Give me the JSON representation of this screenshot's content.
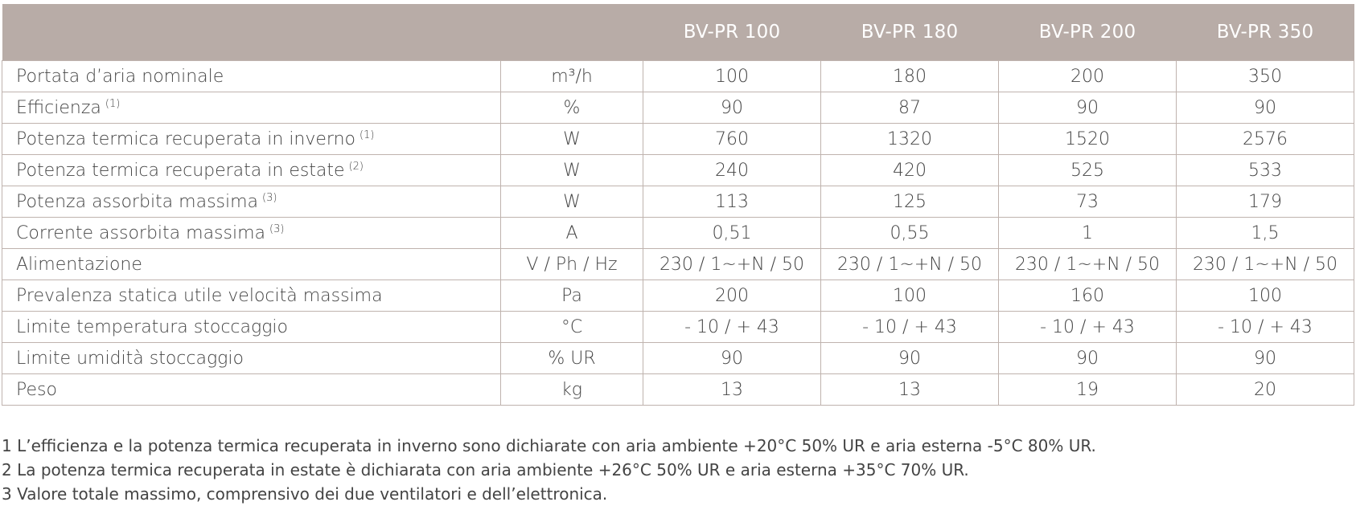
{
  "table": {
    "header": {
      "label": "",
      "unit": "",
      "models": [
        "BV-PR 100",
        "BV-PR 180",
        "BV-PR 200",
        "BV-PR 350"
      ]
    },
    "rows": [
      {
        "label": "Portata d’aria nominale",
        "note": "",
        "unit": "m³/h",
        "values": [
          "100",
          "180",
          "200",
          "350"
        ]
      },
      {
        "label": "Efficienza",
        "note": "(1)",
        "unit": "%",
        "values": [
          "90",
          "87",
          "90",
          "90"
        ]
      },
      {
        "label": "Potenza termica recuperata in inverno",
        "note": "(1)",
        "unit": "W",
        "values": [
          "760",
          "1320",
          "1520",
          "2576"
        ]
      },
      {
        "label": "Potenza termica recuperata in estate",
        "note": "(2)",
        "unit": "W",
        "values": [
          "240",
          "420",
          "525",
          "533"
        ]
      },
      {
        "label": "Potenza assorbita massima",
        "note": "(3)",
        "unit": "W",
        "values": [
          "113",
          "125",
          "73",
          "179"
        ]
      },
      {
        "label": "Corrente assorbita massima",
        "note": "(3)",
        "unit": "A",
        "values": [
          "0,51",
          "0,55",
          "1",
          "1,5"
        ]
      },
      {
        "label": "Alimentazione",
        "note": "",
        "unit": "V / Ph / Hz",
        "values": [
          "230 / 1~+N / 50",
          "230 / 1~+N / 50",
          "230 / 1~+N / 50",
          "230 / 1~+N / 50"
        ]
      },
      {
        "label": "Prevalenza statica utile velocità massima",
        "note": "",
        "unit": "Pa",
        "values": [
          "200",
          "100",
          "160",
          "100"
        ]
      },
      {
        "label": "Limite temperatura stoccaggio",
        "note": "",
        "unit": "°C",
        "values": [
          "- 10 / + 43",
          "- 10 / + 43",
          "- 10 / + 43",
          "- 10 / + 43"
        ]
      },
      {
        "label": "Limite umidità stoccaggio",
        "note": "",
        "unit": "% UR",
        "values": [
          "90",
          "90",
          "90",
          "90"
        ]
      },
      {
        "label": "Peso",
        "note": "",
        "unit": "kg",
        "values": [
          "13",
          "13",
          "19",
          "20"
        ]
      }
    ]
  },
  "notes": [
    "1 L’efficienza e la potenza termica recuperata in inverno sono dichiarate con aria ambiente +20°C 50% UR e aria esterna -5°C 80% UR.",
    "2 La potenza termica recuperata in estate è dichiarata con aria ambiente +26°C 50% UR e aria esterna +35°C 70% UR.",
    "3 Valore totale massimo, comprensivo dei due ventilatori e dell’elettronica."
  ],
  "colors": {
    "header_background": "#b8aca7",
    "header_text": "#ffffff",
    "grid": "#bfb3ae"
  }
}
